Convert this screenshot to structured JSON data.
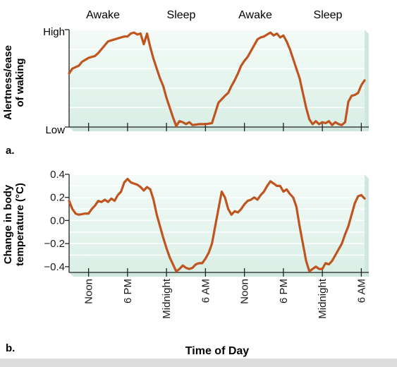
{
  "chart_data": [
    {
      "type": "line",
      "panel_label": "a.",
      "ylabel_lines": [
        "Alertness/ease",
        "of waking"
      ],
      "y_ticks": [
        "High",
        "Low"
      ],
      "phase_labels": [
        "Awake",
        "Sleep",
        "Awake",
        "Sleep"
      ],
      "x_unit": "hours from 6 AM (day 1)",
      "ylim": [
        0,
        1
      ],
      "xlim": [
        0,
        45.5
      ],
      "series": [
        {
          "color": "#c0541f",
          "x": [
            0,
            0.5,
            1.5,
            2,
            2.5,
            3,
            4,
            4.5,
            5,
            5.5,
            6,
            6.5,
            7,
            7.5,
            8,
            8.5,
            9,
            9.5,
            10,
            10.5,
            11,
            11.5,
            12,
            12.5,
            13,
            13.5,
            14,
            14.5,
            15,
            15.5,
            16,
            16.5,
            17,
            17.5,
            18,
            18.5,
            19,
            20,
            21,
            22,
            23,
            24,
            24.5,
            25,
            25.5,
            26,
            26.5,
            27,
            27.5,
            28,
            28.5,
            29,
            29.5,
            30,
            30.5,
            31,
            31.5,
            32,
            32.5,
            33,
            33.5,
            34,
            34.5,
            35,
            35.5,
            36,
            36.5,
            37,
            37.5,
            38,
            38.5,
            39,
            39.5,
            40,
            40.5,
            41,
            41.5,
            42,
            42.5,
            43,
            43.5,
            44,
            44.5,
            45,
            45.5
          ],
          "y": [
            0.55,
            0.6,
            0.63,
            0.67,
            0.69,
            0.71,
            0.73,
            0.76,
            0.8,
            0.84,
            0.88,
            0.89,
            0.9,
            0.91,
            0.92,
            0.93,
            0.93,
            0.96,
            0.97,
            0.95,
            0.96,
            0.85,
            0.96,
            0.82,
            0.7,
            0.6,
            0.5,
            0.42,
            0.3,
            0.2,
            0.1,
            0.01,
            0.06,
            0.05,
            0.03,
            0.05,
            0.02,
            0.03,
            0.03,
            0.04,
            0.25,
            0.32,
            0.35,
            0.42,
            0.48,
            0.55,
            0.63,
            0.68,
            0.72,
            0.78,
            0.84,
            0.9,
            0.92,
            0.93,
            0.95,
            0.97,
            0.94,
            0.96,
            0.92,
            0.94,
            0.88,
            0.8,
            0.7,
            0.6,
            0.5,
            0.35,
            0.2,
            0.08,
            0.03,
            0.06,
            0.03,
            0.05,
            0.04,
            0.06,
            0.02,
            0.05,
            0.03,
            0.02,
            0.05,
            0.26,
            0.32,
            0.33,
            0.35,
            0.43,
            0.48
          ]
        }
      ]
    },
    {
      "type": "line",
      "panel_label": "b.",
      "ylabel_lines": [
        "Change in body",
        "temperature (°C)"
      ],
      "y_ticks": [
        "0.4",
        "0.2",
        "0.0",
        "−0.2",
        "−0.4"
      ],
      "ylim": [
        -0.45,
        0.4
      ],
      "xlim": [
        0,
        45.5
      ],
      "xlabel": "Time of Day",
      "x_ticks": [
        {
          "x": 3,
          "label": "Noon"
        },
        {
          "x": 9,
          "label": "6 PM"
        },
        {
          "x": 15,
          "label": "Midnight"
        },
        {
          "x": 21,
          "label": "6 AM"
        },
        {
          "x": 27,
          "label": "Noon"
        },
        {
          "x": 33,
          "label": "6 PM"
        },
        {
          "x": 39,
          "label": "Midnight"
        },
        {
          "x": 45,
          "label": "6 AM"
        }
      ],
      "series": [
        {
          "color": "#c0541f",
          "x": [
            0,
            0.5,
            1,
            1.5,
            2.5,
            3,
            3.5,
            4,
            4.5,
            5,
            5.5,
            6,
            6.5,
            7,
            7.5,
            8,
            8.5,
            9,
            9.5,
            10,
            10.5,
            11,
            11.5,
            12,
            12.5,
            13,
            13.5,
            14,
            14.5,
            15,
            15.5,
            16,
            16.5,
            17,
            17.5,
            18,
            18.5,
            19,
            19.5,
            20,
            20.5,
            21,
            21.5,
            22,
            22.5,
            23,
            23.5,
            24,
            24.5,
            25,
            25.5,
            26,
            26.5,
            27,
            27.5,
            28,
            28.5,
            29,
            29.5,
            30,
            30.5,
            31,
            31.5,
            32,
            32.5,
            33,
            33.5,
            34,
            34.5,
            35,
            35.5,
            36,
            36.5,
            37,
            37.5,
            38,
            38.5,
            39,
            39.5,
            40,
            40.5,
            41,
            41.5,
            42,
            42.5,
            43,
            43.5,
            44,
            44.5,
            45,
            45.5
          ],
          "y": [
            0.17,
            0.1,
            0.06,
            0.05,
            0.06,
            0.06,
            0.1,
            0.13,
            0.17,
            0.16,
            0.18,
            0.16,
            0.19,
            0.17,
            0.22,
            0.25,
            0.33,
            0.36,
            0.33,
            0.32,
            0.31,
            0.29,
            0.26,
            0.29,
            0.27,
            0.18,
            0.05,
            -0.05,
            -0.15,
            -0.24,
            -0.32,
            -0.38,
            -0.44,
            -0.42,
            -0.39,
            -0.41,
            -0.42,
            -0.41,
            -0.38,
            -0.37,
            -0.37,
            -0.33,
            -0.28,
            -0.2,
            -0.05,
            0.1,
            0.25,
            0.2,
            0.1,
            0.05,
            0.08,
            0.07,
            0.1,
            0.14,
            0.17,
            0.18,
            0.2,
            0.18,
            0.22,
            0.25,
            0.3,
            0.34,
            0.32,
            0.3,
            0.3,
            0.25,
            0.27,
            0.23,
            0.2,
            0.12,
            -0.05,
            -0.2,
            -0.35,
            -0.44,
            -0.42,
            -0.4,
            -0.42,
            -0.42,
            -0.37,
            -0.38,
            -0.35,
            -0.3,
            -0.25,
            -0.2,
            -0.12,
            -0.05,
            0.05,
            0.15,
            0.21,
            0.22,
            0.19
          ]
        }
      ]
    }
  ]
}
